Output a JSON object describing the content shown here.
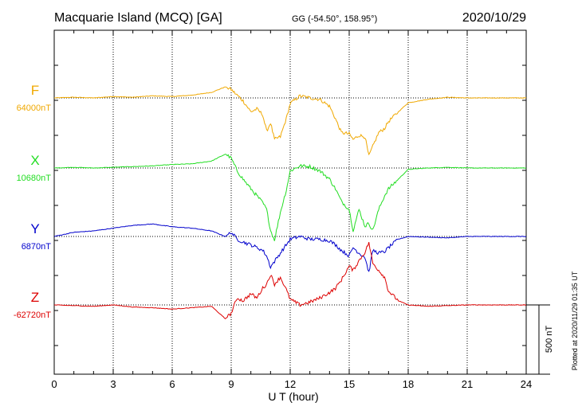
{
  "header": {
    "station": "Macquarie Island (MCQ)  [GA]",
    "coords": "GG (-54.50°, 158.95°)",
    "date": "2020/10/29"
  },
  "footer": {
    "plotted": "Plotted at 2020/11/29 01:35 UT"
  },
  "chart_data": {
    "type": "line",
    "title": "Macquarie Island (MCQ)  [GA]",
    "xlabel": "U T (hour)",
    "ylabel": "",
    "xlim": [
      0,
      24
    ],
    "x_ticks": [
      0,
      3,
      6,
      9,
      12,
      15,
      18,
      21,
      24
    ],
    "x_tick_labels": [
      "0",
      "3",
      "6",
      "9",
      "12",
      "15",
      "18",
      "21",
      "24"
    ],
    "grid": true,
    "scale_bar": {
      "value": 500,
      "label": "500 nT"
    },
    "series": [
      {
        "name": "F",
        "baseline_label": "64000nT",
        "color": "#f0a800",
        "x": [
          0,
          1,
          2,
          3,
          4,
          5,
          6,
          7,
          8,
          8.7,
          9,
          9.3,
          9.6,
          10,
          10.3,
          10.6,
          10.8,
          11,
          11.2,
          11.5,
          11.8,
          12,
          12.5,
          13,
          13.5,
          14,
          14.3,
          14.6,
          15,
          15.2,
          15.5,
          15.8,
          16,
          16.2,
          16.5,
          16.8,
          17,
          17.5,
          18,
          19,
          20,
          21,
          22,
          23,
          24
        ],
        "values": [
          0,
          5,
          0,
          10,
          5,
          15,
          10,
          20,
          40,
          80,
          60,
          20,
          -20,
          -100,
          -80,
          -120,
          -240,
          -180,
          -300,
          -280,
          -150,
          -40,
          15,
          0,
          -10,
          -60,
          -150,
          -250,
          -260,
          -300,
          -270,
          -280,
          -420,
          -350,
          -250,
          -220,
          -170,
          -100,
          -35,
          -10,
          5,
          0,
          0,
          0,
          0
        ]
      },
      {
        "name": "X",
        "baseline_label": "10680nT",
        "color": "#22dd22",
        "x": [
          0,
          1,
          2,
          3,
          4,
          5,
          6,
          7,
          8,
          8.7,
          9,
          9.3,
          9.6,
          10,
          10.3,
          10.6,
          10.8,
          11,
          11.2,
          11.5,
          11.8,
          12,
          12.5,
          13,
          13.5,
          14,
          14.3,
          14.6,
          15,
          15.2,
          15.5,
          15.8,
          16,
          16.2,
          16.5,
          16.8,
          17,
          17.5,
          18,
          19,
          20,
          21,
          22,
          23,
          24
        ],
        "values": [
          0,
          5,
          0,
          5,
          10,
          15,
          25,
          30,
          50,
          100,
          70,
          -20,
          -80,
          -150,
          -200,
          -250,
          -300,
          -450,
          -520,
          -320,
          -160,
          -20,
          15,
          10,
          -20,
          -80,
          -150,
          -240,
          -300,
          -450,
          -300,
          -420,
          -400,
          -450,
          -300,
          -200,
          -150,
          -80,
          -10,
          0,
          5,
          0,
          0,
          0,
          0
        ]
      },
      {
        "name": "Y",
        "baseline_label": "6870nT",
        "color": "#0000cc",
        "x": [
          0,
          1,
          2,
          3,
          4,
          5,
          6,
          7,
          8,
          8.7,
          9,
          9.3,
          9.6,
          10,
          10.3,
          10.6,
          10.8,
          11,
          11.2,
          11.5,
          11.8,
          12,
          12.5,
          13,
          13.5,
          14,
          14.3,
          14.6,
          15,
          15.2,
          15.5,
          15.8,
          16,
          16.2,
          16.5,
          16.8,
          17,
          17.5,
          18,
          19,
          20,
          21,
          22,
          23,
          24
        ],
        "values": [
          0,
          30,
          40,
          60,
          80,
          90,
          70,
          60,
          40,
          0,
          30,
          -20,
          -40,
          -60,
          -80,
          -100,
          -140,
          -220,
          -180,
          -120,
          -60,
          -20,
          0,
          -20,
          -20,
          -30,
          -60,
          -100,
          -140,
          -80,
          -120,
          -150,
          -260,
          -100,
          -120,
          -110,
          -80,
          -20,
          0,
          -5,
          -10,
          0,
          0,
          0,
          0
        ]
      },
      {
        "name": "Z",
        "baseline_label": "-62720nT",
        "color": "#dd0000",
        "x": [
          0,
          1,
          2,
          3,
          4,
          5,
          6,
          7,
          8,
          8.7,
          9,
          9.3,
          9.6,
          10,
          10.3,
          10.6,
          10.8,
          11,
          11.2,
          11.5,
          11.8,
          12,
          12.5,
          13,
          13.5,
          14,
          14.3,
          14.6,
          15,
          15.2,
          15.5,
          15.8,
          16,
          16.2,
          16.5,
          16.8,
          17,
          17.5,
          18,
          19,
          20,
          21,
          22,
          23,
          24
        ],
        "values": [
          0,
          -5,
          -10,
          0,
          -15,
          -20,
          -30,
          -20,
          -10,
          -100,
          -60,
          50,
          30,
          80,
          50,
          120,
          150,
          220,
          150,
          200,
          110,
          40,
          0,
          20,
          50,
          90,
          120,
          180,
          280,
          250,
          320,
          380,
          450,
          300,
          250,
          200,
          100,
          30,
          0,
          -10,
          -5,
          0,
          0,
          0,
          0
        ]
      }
    ]
  }
}
